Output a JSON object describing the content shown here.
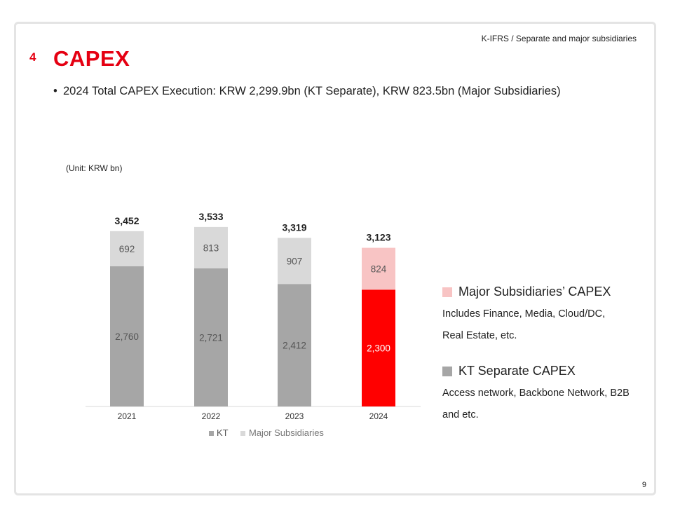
{
  "header_note": "K-IFRS / Separate and major subsidiaries",
  "section_number": "4",
  "title": "CAPEX",
  "bullet": "2024 Total CAPEX Execution: KRW 2,299.9bn (KT Separate), KRW 823.5bn (Major Subsidiaries)",
  "unit_label": "(Unit: KRW bn)",
  "side_legend": {
    "subs_title": "Major Subsidiaries’ CAPEX",
    "subs_desc": "Includes Finance, Media, Cloud/DC, Real Estate, etc.",
    "kt_title": "KT Separate CAPEX",
    "kt_desc": "Access network, Backbone Network, B2B and etc."
  },
  "page_number": "9",
  "colors": {
    "accent": "#e50012",
    "kt": "#a6a6a6",
    "subs": "#d9d9d9",
    "kt_highlight": "#ff0000",
    "subs_highlight": "#f8c4c4"
  },
  "chart_data": {
    "type": "bar",
    "stacked": true,
    "categories": [
      "2021",
      "2022",
      "2023",
      "2024"
    ],
    "series": [
      {
        "name": "KT",
        "values": [
          2760,
          2721,
          2412,
          2300
        ],
        "labels": [
          "2,760",
          "2,721",
          "2,412",
          "2,300"
        ]
      },
      {
        "name": "Major Subsidiaries",
        "values": [
          692,
          813,
          907,
          824
        ],
        "labels": [
          "692",
          "813",
          "907",
          "824"
        ]
      }
    ],
    "totals": [
      3452,
      3533,
      3319,
      3123
    ],
    "total_labels": [
      "3,452",
      "3,533",
      "3,319",
      "3,123"
    ],
    "highlight_category": "2024",
    "ylim": [
      0,
      3560
    ],
    "grid": false,
    "legend_position": "bottom"
  }
}
